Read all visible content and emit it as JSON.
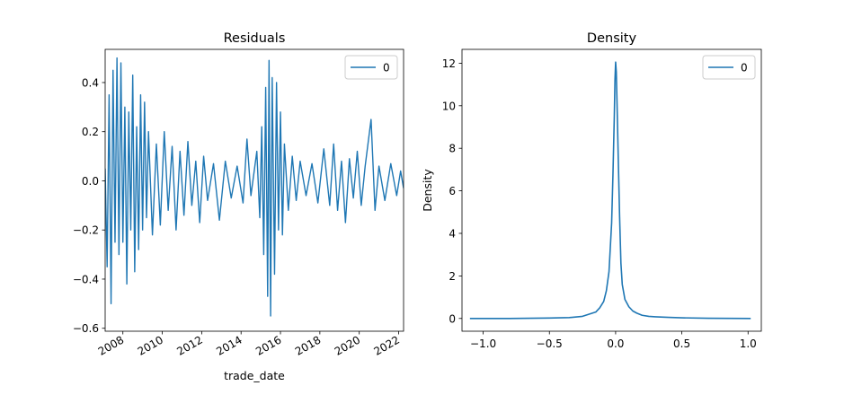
{
  "chart_data": [
    {
      "type": "line",
      "title": "Residuals",
      "xlabel": "trade_date",
      "ylabel": "",
      "xlim": [
        2007.1,
        2022.25
      ],
      "ylim": [
        -0.612,
        0.535
      ],
      "x_ticks": [
        {
          "value": 2008,
          "label": "2008"
        },
        {
          "value": 2010,
          "label": "2010"
        },
        {
          "value": 2012,
          "label": "2012"
        },
        {
          "value": 2014,
          "label": "2014"
        },
        {
          "value": 2016,
          "label": "2016"
        },
        {
          "value": 2018,
          "label": "2018"
        },
        {
          "value": 2020,
          "label": "2020"
        },
        {
          "value": 2022,
          "label": "2022"
        }
      ],
      "y_ticks": [
        {
          "value": 0.4,
          "label": "0.4"
        },
        {
          "value": 0.2,
          "label": "0.2"
        },
        {
          "value": 0.0,
          "label": "0.0"
        },
        {
          "value": -0.2,
          "label": "−0.2"
        },
        {
          "value": -0.4,
          "label": "−0.4"
        },
        {
          "value": -0.6,
          "label": "−0.6"
        }
      ],
      "legend": {
        "position": "top-right",
        "entries": [
          "0"
        ]
      },
      "grid": false,
      "series": [
        {
          "name": "0",
          "color": "#1f77b4",
          "points": [
            [
              2007.1,
              0.05
            ],
            [
              2007.2,
              -0.35
            ],
            [
              2007.3,
              0.35
            ],
            [
              2007.4,
              -0.5
            ],
            [
              2007.5,
              0.45
            ],
            [
              2007.6,
              -0.25
            ],
            [
              2007.7,
              0.5
            ],
            [
              2007.8,
              -0.3
            ],
            [
              2007.9,
              0.48
            ],
            [
              2008.0,
              -0.25
            ],
            [
              2008.1,
              0.3
            ],
            [
              2008.2,
              -0.42
            ],
            [
              2008.3,
              0.28
            ],
            [
              2008.4,
              -0.2
            ],
            [
              2008.5,
              0.43
            ],
            [
              2008.6,
              -0.37
            ],
            [
              2008.7,
              0.22
            ],
            [
              2008.8,
              -0.28
            ],
            [
              2008.9,
              0.35
            ],
            [
              2009.0,
              -0.2
            ],
            [
              2009.1,
              0.32
            ],
            [
              2009.2,
              -0.15
            ],
            [
              2009.3,
              0.2
            ],
            [
              2009.5,
              -0.22
            ],
            [
              2009.7,
              0.15
            ],
            [
              2009.9,
              -0.18
            ],
            [
              2010.1,
              0.2
            ],
            [
              2010.3,
              -0.12
            ],
            [
              2010.5,
              0.14
            ],
            [
              2010.7,
              -0.2
            ],
            [
              2010.9,
              0.12
            ],
            [
              2011.1,
              -0.14
            ],
            [
              2011.3,
              0.16
            ],
            [
              2011.5,
              -0.1
            ],
            [
              2011.7,
              0.08
            ],
            [
              2011.9,
              -0.17
            ],
            [
              2012.1,
              0.1
            ],
            [
              2012.3,
              -0.08
            ],
            [
              2012.6,
              0.07
            ],
            [
              2012.9,
              -0.16
            ],
            [
              2013.2,
              0.08
            ],
            [
              2013.5,
              -0.07
            ],
            [
              2013.8,
              0.06
            ],
            [
              2014.1,
              -0.09
            ],
            [
              2014.3,
              0.17
            ],
            [
              2014.5,
              -0.06
            ],
            [
              2014.8,
              0.12
            ],
            [
              2014.95,
              -0.15
            ],
            [
              2015.05,
              0.22
            ],
            [
              2015.15,
              -0.3
            ],
            [
              2015.25,
              0.38
            ],
            [
              2015.35,
              -0.47
            ],
            [
              2015.42,
              0.49
            ],
            [
              2015.5,
              -0.55
            ],
            [
              2015.58,
              0.42
            ],
            [
              2015.7,
              -0.38
            ],
            [
              2015.8,
              0.4
            ],
            [
              2015.9,
              -0.2
            ],
            [
              2016.0,
              0.28
            ],
            [
              2016.1,
              -0.22
            ],
            [
              2016.2,
              0.15
            ],
            [
              2016.4,
              -0.12
            ],
            [
              2016.6,
              0.1
            ],
            [
              2016.8,
              -0.08
            ],
            [
              2017.0,
              0.08
            ],
            [
              2017.3,
              -0.06
            ],
            [
              2017.6,
              0.07
            ],
            [
              2017.9,
              -0.09
            ],
            [
              2018.2,
              0.13
            ],
            [
              2018.5,
              -0.1
            ],
            [
              2018.7,
              0.15
            ],
            [
              2018.9,
              -0.12
            ],
            [
              2019.1,
              0.08
            ],
            [
              2019.3,
              -0.17
            ],
            [
              2019.5,
              0.09
            ],
            [
              2019.7,
              -0.07
            ],
            [
              2019.9,
              0.12
            ],
            [
              2020.1,
              -0.1
            ],
            [
              2020.3,
              0.06
            ],
            [
              2020.6,
              0.25
            ],
            [
              2020.8,
              -0.12
            ],
            [
              2021.0,
              0.06
            ],
            [
              2021.3,
              -0.08
            ],
            [
              2021.6,
              0.07
            ],
            [
              2021.9,
              -0.06
            ],
            [
              2022.1,
              0.04
            ],
            [
              2022.25,
              -0.03
            ]
          ]
        }
      ]
    },
    {
      "type": "line",
      "title": "Density",
      "xlabel": "",
      "ylabel": "Density",
      "xlim": [
        -1.16,
        1.1
      ],
      "ylim": [
        -0.6,
        12.65
      ],
      "x_ticks": [
        {
          "value": -1.0,
          "label": "−1.0"
        },
        {
          "value": -0.5,
          "label": "−0.5"
        },
        {
          "value": 0.0,
          "label": "0.0"
        },
        {
          "value": 0.5,
          "label": "0.5"
        },
        {
          "value": 1.0,
          "label": "1.0"
        }
      ],
      "y_ticks": [
        {
          "value": 0,
          "label": "0"
        },
        {
          "value": 2,
          "label": "2"
        },
        {
          "value": 4,
          "label": "4"
        },
        {
          "value": 6,
          "label": "6"
        },
        {
          "value": 8,
          "label": "8"
        },
        {
          "value": 10,
          "label": "10"
        },
        {
          "value": 12,
          "label": "12"
        }
      ],
      "legend": {
        "position": "top-right",
        "entries": [
          "0"
        ]
      },
      "grid": false,
      "series": [
        {
          "name": "0",
          "color": "#1f77b4",
          "points": [
            [
              -1.1,
              0.0
            ],
            [
              -0.8,
              0.0
            ],
            [
              -0.5,
              0.02
            ],
            [
              -0.35,
              0.04
            ],
            [
              -0.25,
              0.1
            ],
            [
              -0.2,
              0.2
            ],
            [
              -0.15,
              0.3
            ],
            [
              -0.12,
              0.5
            ],
            [
              -0.09,
              0.8
            ],
            [
              -0.07,
              1.3
            ],
            [
              -0.05,
              2.2
            ],
            [
              -0.03,
              4.5
            ],
            [
              -0.02,
              6.8
            ],
            [
              -0.01,
              9.5
            ],
            [
              -0.005,
              11.2
            ],
            [
              0.0,
              12.05
            ],
            [
              0.005,
              11.6
            ],
            [
              0.01,
              10.3
            ],
            [
              0.02,
              7.5
            ],
            [
              0.03,
              4.8
            ],
            [
              0.04,
              2.6
            ],
            [
              0.05,
              1.6
            ],
            [
              0.07,
              0.9
            ],
            [
              0.1,
              0.55
            ],
            [
              0.13,
              0.35
            ],
            [
              0.16,
              0.25
            ],
            [
              0.2,
              0.15
            ],
            [
              0.25,
              0.1
            ],
            [
              0.3,
              0.08
            ],
            [
              0.4,
              0.05
            ],
            [
              0.5,
              0.03
            ],
            [
              0.7,
              0.01
            ],
            [
              1.02,
              0.0
            ]
          ]
        }
      ]
    }
  ]
}
